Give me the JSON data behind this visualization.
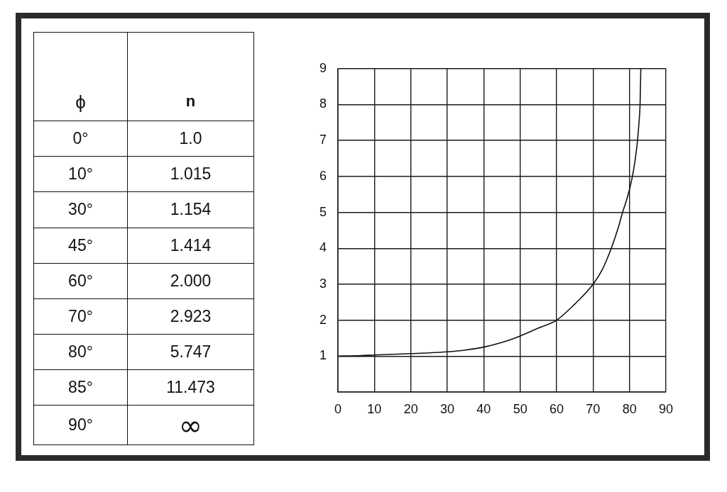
{
  "chart_data": [
    {
      "type": "other",
      "xlabel": "ϕ",
      "ylabel": "n",
      "categories": [
        "0°",
        "10°",
        "30°",
        "45°",
        "60°",
        "70°",
        "80°",
        "85°",
        "90°"
      ],
      "value_labels": [
        "1.0",
        "1.015",
        "1.154",
        "1.414",
        "2.000",
        "2.923",
        "5.747",
        "11.473",
        "∞"
      ]
    },
    {
      "type": "line",
      "x": [
        0,
        5,
        10,
        15,
        20,
        25,
        30,
        35,
        40,
        45,
        50,
        55,
        60,
        65,
        70,
        72.5,
        75,
        77,
        78.1,
        79.5,
        80.8,
        81.6,
        82.2,
        82.6,
        82.9,
        83.1
      ],
      "series": [
        {
          "color": "#111111",
          "values": [
            1.0,
            1.01,
            1.03,
            1.05,
            1.07,
            1.09,
            1.12,
            1.17,
            1.25,
            1.38,
            1.56,
            1.78,
            2.0,
            2.45,
            3.0,
            3.4,
            4.0,
            4.6,
            5.0,
            5.45,
            6.0,
            6.5,
            7.0,
            7.5,
            8.0,
            9.0
          ]
        }
      ],
      "xlim": [
        0,
        90
      ],
      "xticks": [
        0,
        10,
        20,
        30,
        40,
        50,
        60,
        70,
        80,
        90
      ],
      "ylim": [
        0,
        9
      ],
      "yticks": [
        {
          "value": 0,
          "label": null
        },
        1,
        2,
        3,
        4,
        5,
        6,
        7,
        8,
        9
      ],
      "grid": true,
      "line_style": "solid"
    }
  ]
}
